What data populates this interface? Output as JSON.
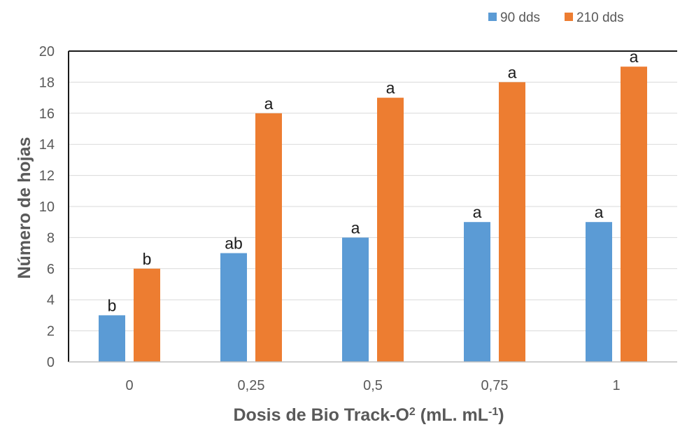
{
  "chart_data": {
    "type": "bar",
    "categories": [
      "0",
      "0,25",
      "0,5",
      "0,75",
      "1"
    ],
    "series": [
      {
        "name": "90 dds",
        "color": "#5b9bd5",
        "values": [
          3,
          7,
          8,
          9,
          9
        ],
        "labels": [
          "b",
          "ab",
          "a",
          "a",
          "a"
        ]
      },
      {
        "name": "210 dds",
        "color": "#ed7d31",
        "values": [
          6,
          16,
          17,
          18,
          19
        ],
        "labels": [
          "b",
          "a",
          "a",
          "a",
          "a"
        ]
      }
    ],
    "ylabel": "Número de hojas",
    "xlabel": "Dosis de Bio Track-O",
    "xlabel_sup1": "2",
    "xlabel_unit": " (mL. mL",
    "xlabel_sup2": "-1",
    "xlabel_end": ")",
    "ylim": [
      0,
      20
    ],
    "yticks": [
      "0",
      "2",
      "4",
      "6",
      "8",
      "10",
      "12",
      "14",
      "16",
      "18",
      "20"
    ],
    "grid": true,
    "legend_position": "top-right"
  }
}
